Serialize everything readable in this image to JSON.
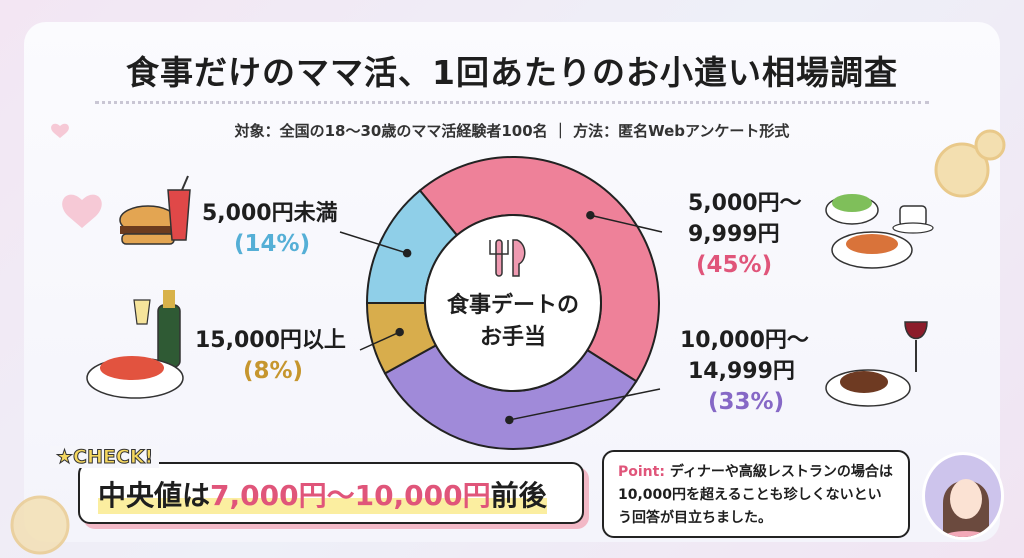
{
  "title": "食事だけのママ活、1回あたりのお小遣い相場調査",
  "subtitle": "対象：全国の18〜30歳のママ活経験者100名 ｜ 方法：匿名Webアンケート形式",
  "chart_data": {
    "type": "pie",
    "variant": "donut",
    "center_label": [
      "食事デートの",
      "お手当"
    ],
    "center_icon": "fork-knife-icon",
    "categories": [
      "5,000円～9,999円",
      "10,000円～14,999円",
      "15,000円以上",
      "5,000円未満"
    ],
    "values": [
      45,
      33,
      8,
      14
    ],
    "colors": [
      "#ee8199",
      "#a08ad9",
      "#d8ad4c",
      "#8fcfe8"
    ],
    "label_colors": [
      "#e0557a",
      "#8668c6",
      "#c6962e",
      "#55afd6"
    ],
    "labels": [
      {
        "lines": [
          "5,000円～",
          "9,999円"
        ],
        "pct": "(45%)"
      },
      {
        "lines": [
          "10,000円～",
          "14,999円"
        ],
        "pct": "(33%)"
      },
      {
        "lines": [
          "15,000円以上"
        ],
        "pct": "(8%)"
      },
      {
        "lines": [
          "5,000円未満"
        ],
        "pct": "(14%)"
      }
    ]
  },
  "check": {
    "tag": "CHECK!",
    "prefix": "中央値は",
    "highlight": "7,000円～10,000円",
    "suffix": "前後"
  },
  "point": {
    "label": "Point:",
    "text": "ディナーや高級レストランの場合は10,000円を超えることも珍しくないという回答が目立ちました。"
  }
}
